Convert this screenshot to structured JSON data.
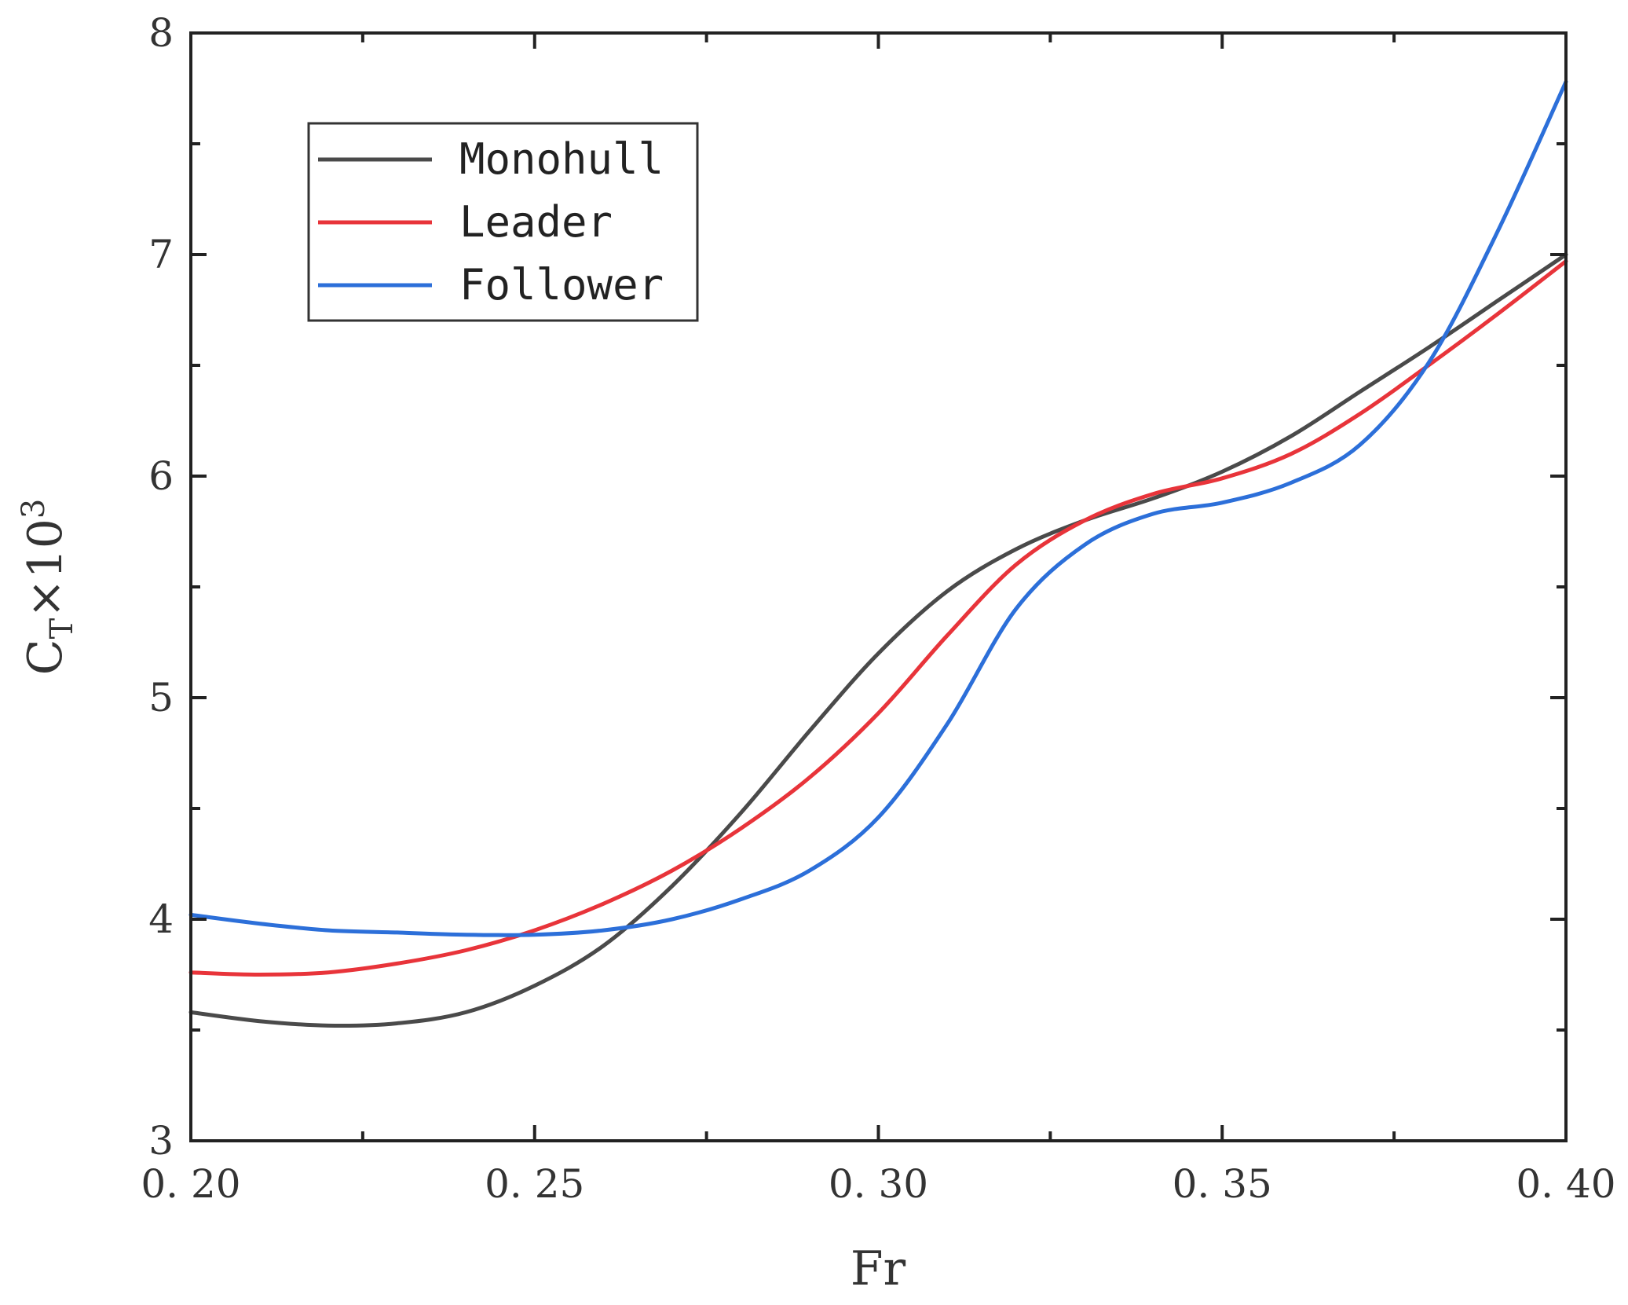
{
  "chart_data": {
    "type": "line",
    "title": "",
    "xlabel": "Fr",
    "ylabel": {
      "base": "C",
      "subscript": "T",
      "middle": "×10",
      "superscript": "3"
    },
    "xlim": [
      0.2,
      0.4
    ],
    "ylim": [
      3,
      8
    ],
    "x_ticks": [
      0.2,
      0.25,
      0.3,
      0.35,
      0.4
    ],
    "x_tick_labels": [
      "0. 20",
      "0. 25",
      "0. 30",
      "0. 35",
      "0. 40"
    ],
    "y_ticks": [
      3,
      4,
      5,
      6,
      7,
      8
    ],
    "y_tick_labels": [
      "3",
      "4",
      "5",
      "6",
      "7",
      "8"
    ],
    "grid": false,
    "legend_position": "top-left",
    "series": [
      {
        "name": "Monohull",
        "color": "#4a4a4a",
        "x": [
          0.2,
          0.21,
          0.22,
          0.23,
          0.24,
          0.25,
          0.26,
          0.27,
          0.28,
          0.29,
          0.3,
          0.31,
          0.32,
          0.33,
          0.34,
          0.35,
          0.36,
          0.37,
          0.38,
          0.39,
          0.4
        ],
        "y": [
          3.58,
          3.54,
          3.52,
          3.53,
          3.58,
          3.7,
          3.88,
          4.15,
          4.48,
          4.85,
          5.2,
          5.48,
          5.67,
          5.8,
          5.9,
          6.02,
          6.18,
          6.38,
          6.58,
          6.79,
          7.0
        ]
      },
      {
        "name": "Leader",
        "color": "#e8343a",
        "x": [
          0.2,
          0.21,
          0.22,
          0.23,
          0.24,
          0.25,
          0.26,
          0.27,
          0.28,
          0.29,
          0.3,
          0.31,
          0.32,
          0.33,
          0.34,
          0.35,
          0.36,
          0.37,
          0.38,
          0.39,
          0.4
        ],
        "y": [
          3.76,
          3.75,
          3.76,
          3.8,
          3.86,
          3.95,
          4.07,
          4.22,
          4.41,
          4.64,
          4.93,
          5.28,
          5.6,
          5.8,
          5.92,
          5.99,
          6.1,
          6.28,
          6.5,
          6.73,
          6.97
        ]
      },
      {
        "name": "Follower",
        "color": "#2c6fd9",
        "x": [
          0.2,
          0.21,
          0.22,
          0.23,
          0.24,
          0.25,
          0.26,
          0.27,
          0.28,
          0.29,
          0.3,
          0.31,
          0.32,
          0.33,
          0.34,
          0.35,
          0.36,
          0.37,
          0.38,
          0.39,
          0.4
        ],
        "y": [
          4.02,
          3.98,
          3.95,
          3.94,
          3.93,
          3.93,
          3.95,
          4.0,
          4.09,
          4.22,
          4.46,
          4.88,
          5.4,
          5.69,
          5.83,
          5.88,
          5.97,
          6.14,
          6.51,
          7.1,
          7.78
        ]
      }
    ]
  }
}
